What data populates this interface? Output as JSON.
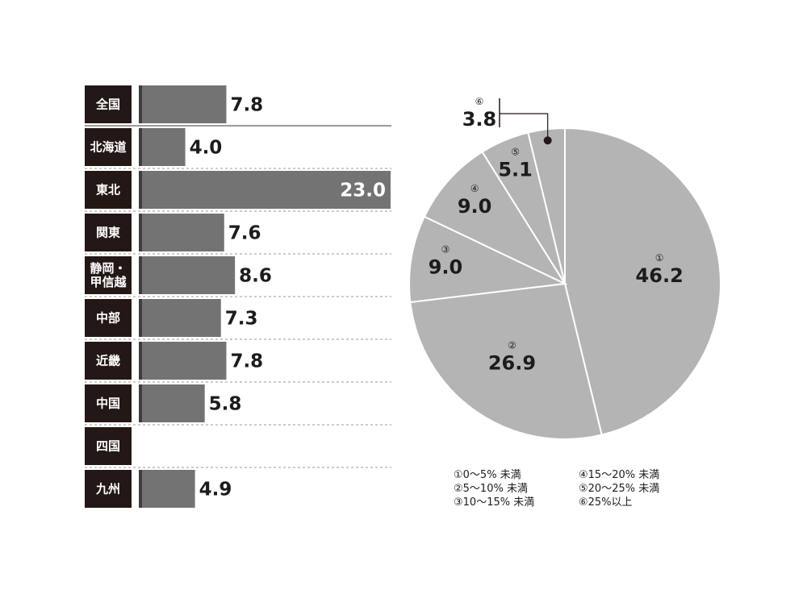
{
  "chart_data": [
    {
      "type": "bar",
      "orientation": "horizontal",
      "categories": [
        "全国",
        "北海道",
        "東北",
        "関東",
        "静岡・甲信越",
        "中部",
        "近畿",
        "中国",
        "四国",
        "九州"
      ],
      "category_lines": [
        [
          "全国"
        ],
        [
          "北海道"
        ],
        [
          "東北"
        ],
        [
          "関東"
        ],
        [
          "静岡・",
          "甲信越"
        ],
        [
          "中部"
        ],
        [
          "近畿"
        ],
        [
          "中国"
        ],
        [
          "四国"
        ],
        [
          "九州"
        ]
      ],
      "values": [
        7.8,
        4.0,
        23.0,
        7.6,
        8.6,
        7.3,
        7.8,
        5.8,
        null,
        4.9
      ],
      "value_labels": [
        "7.8",
        "4.0",
        "23.0",
        "7.6",
        "8.6",
        "7.3",
        "7.8",
        "5.8",
        "",
        "4.9"
      ],
      "xlim": [
        0,
        23.0
      ],
      "grid": false,
      "colors": {
        "label_box": "#231815",
        "bar": "#737373",
        "bar_shadow": "#3e3e3e",
        "separator": "#9a9a9a"
      }
    },
    {
      "type": "pie",
      "slices": [
        {
          "number": "①",
          "value": 46.2,
          "label": "46.2"
        },
        {
          "number": "②",
          "value": 26.9,
          "label": "26.9"
        },
        {
          "number": "③",
          "value": 9.0,
          "label": "9.0"
        },
        {
          "number": "④",
          "value": 9.0,
          "label": "9.0"
        },
        {
          "number": "⑤",
          "value": 5.1,
          "label": "5.1"
        },
        {
          "number": "⑥",
          "value": 3.8,
          "label": "3.8"
        }
      ],
      "legend": [
        "①0～5% 未満",
        "②5～10% 未満",
        "③10～15% 未満",
        "④15～20% 未満",
        "⑤20～25% 未満",
        "⑥25%以上"
      ],
      "legend_placement": "bottom",
      "colors": {
        "slice": "#b4b4b4",
        "edge": "#ffffff",
        "callout": "#231815"
      }
    }
  ]
}
